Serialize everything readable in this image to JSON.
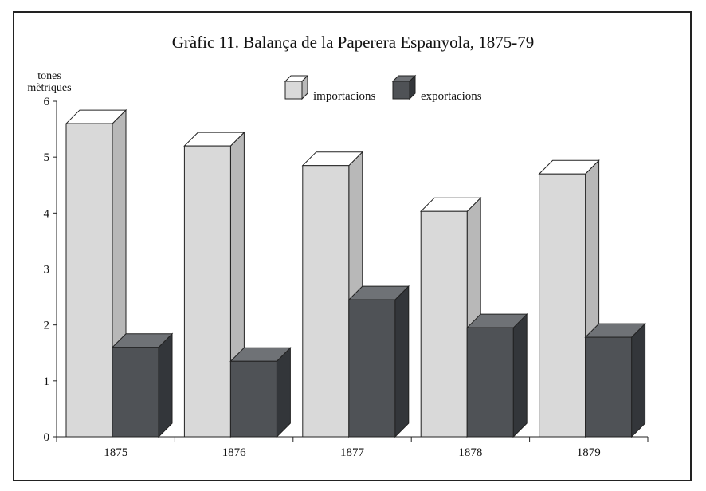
{
  "chart_data": {
    "type": "bar",
    "title": "Gràfic 11. Balança de la Paperera Espanyola, 1875-79",
    "ylabel_lines": [
      "tones",
      "mètriques"
    ],
    "xlabel": "",
    "categories": [
      "1875",
      "1876",
      "1877",
      "1878",
      "1879"
    ],
    "series": [
      {
        "name": "importacions",
        "values": [
          5.6,
          5.2,
          4.85,
          4.03,
          4.7
        ]
      },
      {
        "name": "exportacions",
        "values": [
          1.6,
          1.35,
          2.45,
          1.95,
          1.78
        ]
      }
    ],
    "ylim": [
      0,
      6
    ],
    "yticks": [
      0,
      1,
      2,
      3,
      4,
      5,
      6
    ],
    "grid": false,
    "legend_position": "top-center",
    "style": "3d-bar",
    "colors": {
      "importacions_front": "#d9d9d9",
      "importacions_top": "#ffffff",
      "importacions_side": "#b8b8b8",
      "exportacions_front": "#4f5256",
      "exportacions_top": "#6f7276",
      "exportacions_side": "#33363a"
    }
  }
}
